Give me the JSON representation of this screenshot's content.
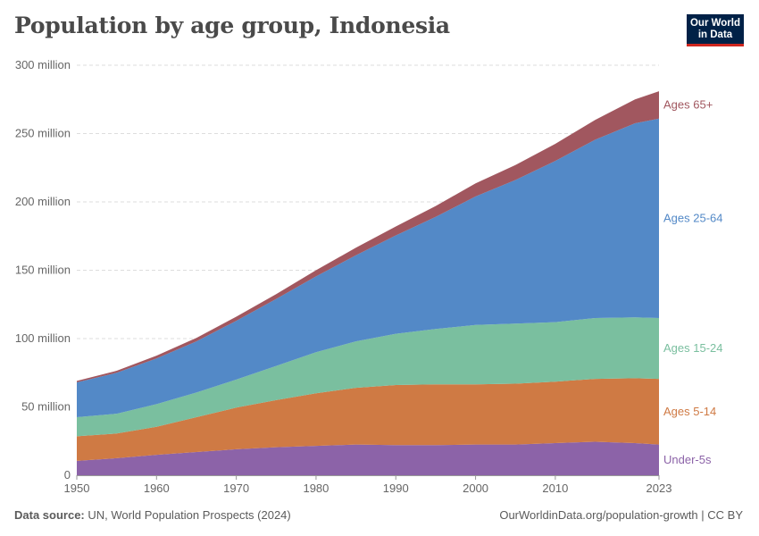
{
  "title": "Population by age group, Indonesia",
  "logo": {
    "line1": "Our World",
    "line2": "in Data"
  },
  "footer": {
    "source_label": "Data source:",
    "source_text": "UN, World Population Prospects (2024)",
    "url_text": "OurWorldinData.org/population-growth | CC BY"
  },
  "chart_data": {
    "type": "area",
    "stacked": true,
    "title": "Population by age group, Indonesia",
    "xlabel": "",
    "ylabel": "",
    "x": [
      1950,
      1955,
      1960,
      1965,
      1970,
      1975,
      1980,
      1985,
      1990,
      1995,
      2000,
      2005,
      2010,
      2015,
      2020,
      2023
    ],
    "xlim": [
      1950,
      2023
    ],
    "ylim": [
      0,
      300000000
    ],
    "x_ticks": [
      "1950",
      "1960",
      "1970",
      "1980",
      "1990",
      "2000",
      "2010",
      "2023"
    ],
    "x_tick_values": [
      1950,
      1960,
      1970,
      1980,
      1990,
      2000,
      2010,
      2023
    ],
    "y_ticks": [
      "0",
      "50 million",
      "100 million",
      "150 million",
      "200 million",
      "250 million",
      "300 million"
    ],
    "y_tick_values": [
      0,
      50000000,
      100000000,
      150000000,
      200000000,
      250000000,
      300000000
    ],
    "grid": true,
    "legend": "inline-right",
    "series": [
      {
        "name": "Under-5s",
        "color": "#8c63a8",
        "values": [
          10500000,
          12500000,
          15000000,
          17000000,
          19000000,
          20500000,
          21500000,
          22500000,
          22000000,
          22000000,
          22500000,
          22500000,
          23500000,
          24500000,
          23500000,
          22500000
        ]
      },
      {
        "name": "Ages 5-14",
        "color": "#cf7a44",
        "values": [
          18000000,
          18000000,
          20500000,
          25500000,
          30500000,
          34500000,
          38500000,
          41500000,
          44000000,
          44500000,
          44000000,
          44500000,
          45000000,
          46000000,
          47500000,
          48000000
        ]
      },
      {
        "name": "Ages 15-24",
        "color": "#7abf9f",
        "values": [
          14000000,
          14500000,
          16500000,
          18000000,
          20500000,
          25000000,
          30000000,
          34000000,
          37500000,
          40500000,
          43500000,
          44000000,
          43500000,
          44500000,
          44500000,
          44500000
        ]
      },
      {
        "name": "Ages 25-64",
        "color": "#5389c7",
        "values": [
          25500000,
          30000000,
          33500000,
          37500000,
          43000000,
          49000000,
          55500000,
          63000000,
          72000000,
          82000000,
          94000000,
          105000000,
          118000000,
          130500000,
          142000000,
          146000000
        ]
      },
      {
        "name": "Ages 65+",
        "color": "#a1575f",
        "values": [
          1000000,
          1500000,
          2000000,
          2500000,
          3000000,
          3500000,
          4500000,
          5500000,
          6500000,
          8000000,
          9500000,
          11000000,
          12500000,
          14500000,
          17500000,
          20000000
        ]
      }
    ]
  }
}
